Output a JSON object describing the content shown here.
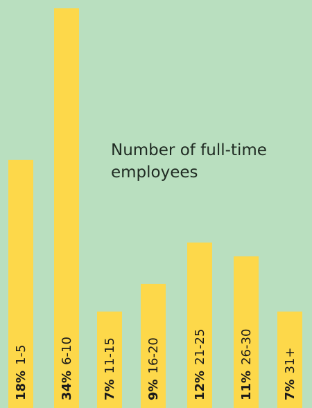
{
  "chart_data": {
    "type": "bar",
    "title": "Number of full-time employees",
    "categories": [
      "1-5",
      "6-10",
      "11-15",
      "16-20",
      "21-25",
      "26-30",
      "31+"
    ],
    "values": [
      18,
      34,
      7,
      9,
      12,
      11,
      7
    ],
    "value_labels": [
      "18%",
      "34%",
      "7%",
      "9%",
      "12%",
      "11%",
      "7%"
    ],
    "color": "#fdd84a",
    "ylim": [
      0,
      29
    ]
  }
}
